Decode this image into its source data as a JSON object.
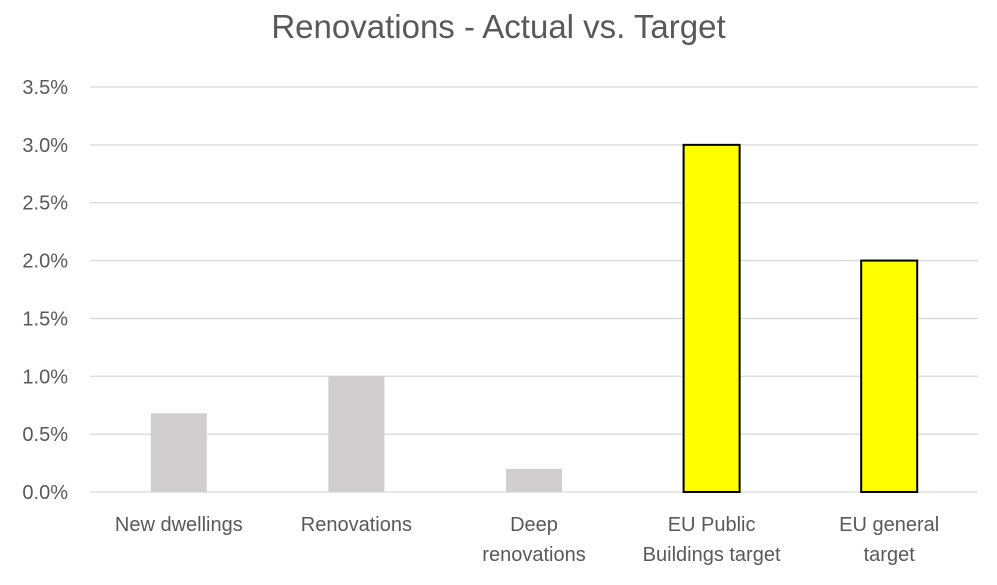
{
  "chart_data": {
    "type": "bar",
    "title": "Renovations - Actual vs. Target",
    "categories": [
      [
        "New dwellings"
      ],
      [
        "Renovations"
      ],
      [
        "Deep",
        "renovations"
      ],
      [
        "EU Public",
        "Buildings target"
      ],
      [
        "EU general",
        "target"
      ]
    ],
    "values": [
      0.0068,
      0.01,
      0.002,
      0.03,
      0.02
    ],
    "bar_colors": [
      "#d0cece",
      "#d0cece",
      "#d0cece",
      "#ffff00",
      "#ffff00"
    ],
    "bar_outline": [
      false,
      false,
      false,
      true,
      true
    ],
    "y_ticks": [
      "0.0%",
      "0.5%",
      "1.0%",
      "1.5%",
      "2.0%",
      "2.5%",
      "3.0%",
      "3.5%"
    ],
    "ylim": [
      0,
      0.035
    ],
    "xlabel": "",
    "ylabel": "",
    "grid": true,
    "legend": "none"
  }
}
